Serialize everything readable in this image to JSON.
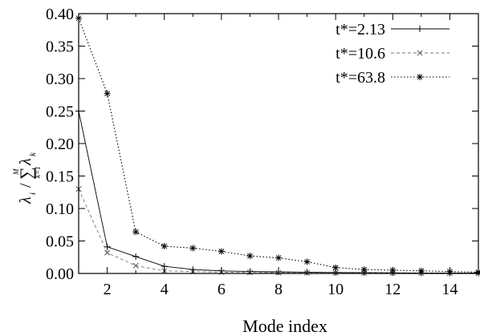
{
  "chart_data": {
    "type": "line",
    "xlabel": "Mode index",
    "ylabel": {
      "lambda": "λ",
      "lambda_sub": "i",
      "slash": "/",
      "sum": "∑",
      "sum_top": "M",
      "sum_bottom": "k=1",
      "lambda2": "λ",
      "lambda2_sub": "k"
    },
    "xlim": [
      1,
      15
    ],
    "ylim": [
      0,
      0.4
    ],
    "xticks": [
      2,
      4,
      6,
      8,
      10,
      12,
      14
    ],
    "yticks": [
      0.0,
      0.05,
      0.1,
      0.15,
      0.2,
      0.25,
      0.3,
      0.35,
      0.4
    ],
    "ytick_labels": [
      "0.00",
      "0.05",
      "0.10",
      "0.15",
      "0.20",
      "0.25",
      "0.30",
      "0.35",
      "0.40"
    ],
    "grid": false,
    "legend_position": "top-right",
    "series": [
      {
        "name": "t*=2.13",
        "marker": "plus",
        "line": "solid",
        "x": [
          1,
          2,
          3,
          4,
          5,
          6,
          7,
          8,
          9,
          10,
          11,
          12,
          13,
          14,
          15
        ],
        "values": [
          0.25,
          0.041,
          0.026,
          0.011,
          0.006,
          0.004,
          0.003,
          0.0025,
          0.002,
          0.0015,
          0.0012,
          0.001,
          0.0008,
          0.0007,
          0.0006
        ]
      },
      {
        "name": "t*=10.6",
        "marker": "cross",
        "line": "dashed",
        "x": [
          1,
          2,
          3,
          4,
          5,
          6,
          7,
          8,
          9,
          10,
          11,
          12,
          13,
          14,
          15
        ],
        "values": [
          0.13,
          0.032,
          0.012,
          0.004,
          0.003,
          0.002,
          0.0015,
          0.0012,
          0.001,
          0.0008,
          0.0007,
          0.0006,
          0.0005,
          0.0004,
          0.0003
        ]
      },
      {
        "name": "t*=63.8",
        "marker": "star",
        "line": "dotted",
        "x": [
          1,
          2,
          3,
          4,
          5,
          6,
          7,
          8,
          9,
          10,
          11,
          12,
          13,
          14,
          15
        ],
        "values": [
          0.393,
          0.277,
          0.064,
          0.042,
          0.039,
          0.034,
          0.027,
          0.024,
          0.018,
          0.009,
          0.006,
          0.005,
          0.004,
          0.003,
          0.002
        ]
      }
    ]
  }
}
